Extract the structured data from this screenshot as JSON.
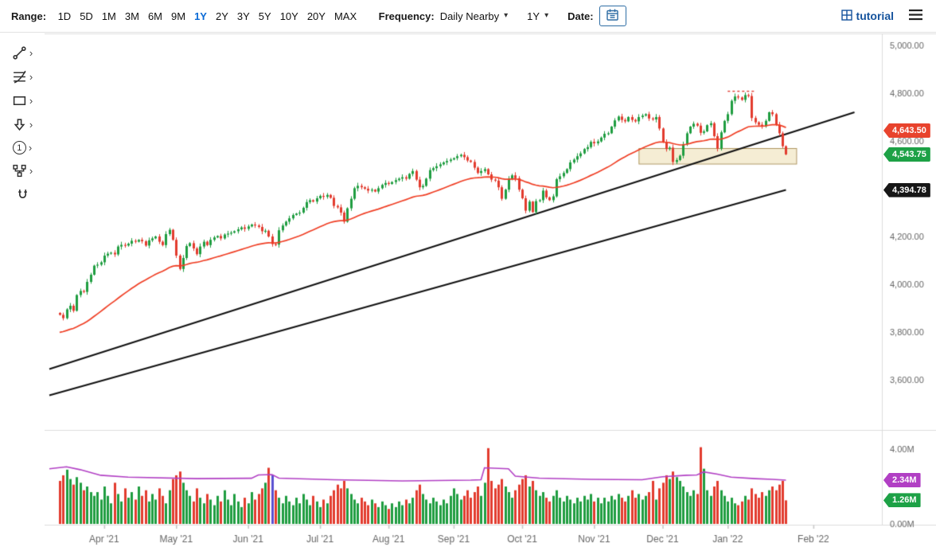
{
  "glyphs": {
    "caret": "▾",
    "chevron": "›"
  },
  "topbar": {
    "range": {
      "label": "Range:",
      "options": [
        "1D",
        "5D",
        "1M",
        "3M",
        "6M",
        "9M",
        "1Y",
        "2Y",
        "3Y",
        "5Y",
        "10Y",
        "20Y",
        "MAX"
      ],
      "active": "1Y"
    },
    "frequency": {
      "label": "Frequency:",
      "value": "Daily Nearby"
    },
    "aggregation": {
      "value": "1Y"
    },
    "date": {
      "label": "Date:"
    },
    "brand": {
      "name": "tutorial"
    }
  },
  "left_toolbar": {
    "chevron": "›",
    "number_label": "1",
    "items": [
      "trendline-tool",
      "fibonacci-tools",
      "shape-tools",
      "arrow-annotation-tool",
      "number-annotation-tool",
      "indicator-flow-tool",
      "magnet-mode"
    ]
  },
  "chart_data": {
    "type": "candlestick",
    "panes": [
      "price",
      "volume"
    ],
    "x_axis": {
      "domain": [
        -3,
        240
      ],
      "labels": [
        "Apr '21",
        "May '21",
        "Jun '21",
        "Jul '21",
        "Aug '21",
        "Sep '21",
        "Oct '21",
        "Nov '21",
        "Dec '21",
        "Jan '22",
        "Feb '22"
      ],
      "label_days": [
        13,
        34,
        55,
        76,
        96,
        115,
        135,
        156,
        176,
        195,
        220
      ]
    },
    "y_axis": {
      "labels": [
        "5,000.00",
        "4,800.00",
        "4,600.00",
        "4,400.00",
        "4,200.00",
        "4,000.00",
        "3,800.00",
        "3,600.00"
      ],
      "values": [
        5000,
        4800,
        4600,
        4400,
        4200,
        4000,
        3800,
        3600
      ],
      "range": [
        3500,
        5050
      ]
    },
    "volume_axis": {
      "labels": [
        "4.00M",
        "0.00M"
      ],
      "values": [
        4,
        0
      ],
      "range": [
        0,
        4.4
      ]
    },
    "candles": {
      "first_open": 3880,
      "colors": {
        "up": "#1f9d40",
        "down": "#e23b2e"
      },
      "closes": [
        3872,
        3858,
        3895,
        3910,
        3889,
        3955,
        3972,
        3968,
        4010,
        4040,
        4078,
        4082,
        4092,
        4120,
        4128,
        4132,
        4125,
        4158,
        4165,
        4162,
        4170,
        4182,
        4178,
        4186,
        4180,
        4162,
        4184,
        4192,
        4200,
        4178,
        4164,
        4210,
        4228,
        4186,
        4120,
        4064,
        4110,
        4160,
        4172,
        4150,
        4126,
        4158,
        4178,
        4164,
        4186,
        4196,
        4202,
        4192,
        4208,
        4212,
        4216,
        4222,
        4230,
        4238,
        4232,
        4242,
        4250,
        4246,
        4240,
        4222,
        4224,
        4200,
        4168,
        4166,
        4226,
        4246,
        4262,
        4276,
        4290,
        4296,
        4300,
        4320,
        4344,
        4352,
        4346,
        4360,
        4370,
        4366,
        4374,
        4362,
        4328,
        4322,
        4300,
        4262,
        4318,
        4358,
        4402,
        4412,
        4406,
        4400,
        4392,
        4396,
        4388,
        4402,
        4416,
        4424,
        4420,
        4428,
        4436,
        4442,
        4448,
        4442,
        4462,
        4474,
        4438,
        4406,
        4412,
        4442,
        4478,
        4486,
        4494,
        4502,
        4510,
        4516,
        4522,
        4528,
        4536,
        4542,
        4532,
        4518,
        4512,
        4488,
        4466,
        4474,
        4482,
        4460,
        4438,
        4434,
        4406,
        4358,
        4396,
        4442,
        4456,
        4444,
        4396,
        4360,
        4308,
        4346,
        4302,
        4348,
        4352,
        4392,
        4364,
        4352,
        4368,
        4440,
        4452,
        4466,
        4482,
        4510,
        4522,
        4536,
        4548,
        4566,
        4574,
        4596,
        4590,
        4598,
        4614,
        4630,
        4632,
        4660,
        4686,
        4702,
        4688,
        4682,
        4700,
        4688,
        4682,
        4700,
        4706,
        4712,
        4694,
        4690,
        4700,
        4652,
        4596,
        4566,
        4572,
        4512,
        4520,
        4538,
        4586,
        4632,
        4660,
        4672,
        4664,
        4634,
        4640,
        4666,
        4674,
        4620,
        4568,
        4636,
        4684,
        4712,
        4768,
        4786,
        4782,
        4772,
        4792,
        4788,
        4696,
        4678,
        4668,
        4662,
        4684,
        4720,
        4712,
        4668,
        4632,
        4578,
        4543.75
      ],
      "volumes": [
        2.3,
        2.6,
        2.9,
        2.4,
        2.1,
        2.5,
        2.2,
        1.8,
        2.0,
        1.7,
        1.5,
        1.7,
        1.3,
        2.0,
        1.5,
        1.1,
        2.2,
        1.6,
        1.2,
        1.9,
        1.4,
        1.7,
        1.3,
        2.0,
        1.5,
        1.8,
        1.2,
        1.6,
        1.3,
        1.9,
        1.5,
        1.1,
        1.8,
        2.4,
        2.6,
        2.8,
        2.2,
        1.8,
        1.5,
        1.2,
        1.9,
        1.4,
        1.1,
        1.6,
        1.3,
        1.0,
        1.5,
        1.2,
        1.8,
        1.3,
        1.0,
        1.6,
        1.2,
        0.9,
        1.4,
        1.1,
        1.7,
        1.3,
        1.6,
        1.9,
        2.2,
        3.0,
        2.6,
        1.8,
        1.4,
        1.1,
        1.5,
        1.2,
        1.0,
        1.4,
        1.1,
        1.6,
        1.3,
        1.0,
        1.5,
        1.2,
        0.9,
        1.3,
        1.1,
        1.5,
        1.8,
        2.1,
        1.9,
        2.3,
        1.9,
        1.6,
        1.3,
        1.1,
        1.4,
        1.2,
        1.0,
        1.3,
        1.1,
        0.9,
        1.2,
        1.0,
        0.8,
        1.1,
        0.9,
        1.2,
        1.0,
        1.3,
        1.1,
        1.4,
        1.8,
        2.1,
        1.6,
        1.3,
        1.1,
        1.4,
        1.2,
        1.0,
        1.3,
        1.1,
        1.5,
        1.9,
        1.6,
        1.3,
        1.5,
        1.8,
        1.4,
        1.7,
        2.0,
        1.5,
        2.2,
        4.05,
        2.3,
        1.9,
        2.1,
        2.4,
        2.0,
        1.7,
        1.4,
        1.8,
        2.1,
        2.4,
        2.6,
        2.0,
        2.3,
        1.8,
        1.5,
        1.7,
        1.4,
        1.2,
        1.5,
        1.8,
        1.4,
        1.2,
        1.5,
        1.3,
        1.1,
        1.4,
        1.2,
        1.5,
        1.3,
        1.6,
        1.2,
        1.4,
        1.1,
        1.4,
        1.2,
        1.5,
        1.3,
        1.6,
        1.4,
        1.2,
        1.5,
        1.8,
        1.4,
        1.6,
        1.3,
        1.5,
        1.7,
        2.3,
        1.3,
        1.9,
        2.2,
        2.6,
        2.4,
        2.8,
        2.5,
        2.3,
        2.0,
        1.7,
        1.5,
        1.8,
        1.6,
        4.1,
        2.95,
        1.8,
        1.5,
        2.0,
        2.3,
        1.8,
        1.5,
        1.2,
        1.4,
        1.1,
        1.0,
        1.2,
        1.5,
        1.3,
        1.9,
        1.6,
        1.4,
        1.7,
        1.5,
        1.8,
        2.0,
        1.8,
        2.1,
        2.3,
        1.26
      ],
      "volume_overrides": [
        {
          "index": 62,
          "color": "#5a50d0"
        }
      ]
    },
    "overlays": {
      "ma": {
        "kind": "ema",
        "period": 40,
        "seed": 3795,
        "color": "#ef3e24",
        "last_value_label": "4,643.50"
      },
      "trendlines": [
        {
          "from_day": -3,
          "from_price": 3645,
          "to_day": 232,
          "to_price": 4720,
          "color": "#111111",
          "width": 2
        },
        {
          "from_day": -3,
          "from_price": 3535,
          "to_day": 212,
          "to_price": 4394.78,
          "color": "#111111",
          "width": 2,
          "last_value_label": "4,394.78"
        }
      ],
      "box": {
        "from_day": 169,
        "to_day": 215,
        "top_price": 4570,
        "bottom_price": 4505,
        "fill": "rgba(233,214,160,0.45)",
        "border": "#ad945c"
      },
      "peak_marker": {
        "from_day": 195,
        "to_day": 203,
        "price": 4808,
        "color": "#e03c31",
        "dashed": true
      },
      "volume_ma": {
        "color": "#b13fc4",
        "last_value_label": "2.34M",
        "points": [
          [
            -3,
            2.95
          ],
          [
            2,
            3.05
          ],
          [
            6,
            2.9
          ],
          [
            12,
            2.6
          ],
          [
            20,
            2.5
          ],
          [
            40,
            2.42
          ],
          [
            56,
            2.44
          ],
          [
            58,
            2.62
          ],
          [
            62,
            2.64
          ],
          [
            64,
            2.45
          ],
          [
            80,
            2.36
          ],
          [
            100,
            2.3
          ],
          [
            120,
            2.34
          ],
          [
            123,
            2.36
          ],
          [
            124,
            3.0
          ],
          [
            131,
            2.95
          ],
          [
            133,
            2.55
          ],
          [
            140,
            2.45
          ],
          [
            155,
            2.38
          ],
          [
            170,
            2.36
          ],
          [
            176,
            2.52
          ],
          [
            183,
            2.6
          ],
          [
            186,
            2.62
          ],
          [
            188,
            2.78
          ],
          [
            192,
            2.66
          ],
          [
            196,
            2.5
          ],
          [
            203,
            2.42
          ],
          [
            208,
            2.38
          ],
          [
            212,
            2.34
          ]
        ]
      }
    },
    "badges": [
      {
        "name": "ma-value-badge",
        "text": "4,643.50",
        "color": "#e8432d",
        "pane": "price",
        "value": 4643.5
      },
      {
        "name": "last-price-badge",
        "text": "4,543.75",
        "color": "#1da146",
        "pane": "price",
        "value": 4543.75
      },
      {
        "name": "trendline-value-badge",
        "text": "4,394.78",
        "color": "#161616",
        "pane": "price",
        "value": 4394.78
      },
      {
        "name": "volume-ma-badge",
        "text": "2.34M",
        "color": "#b13fc4",
        "pane": "volume",
        "value": 2.34
      },
      {
        "name": "volume-value-badge",
        "text": "1.26M",
        "color": "#1da146",
        "pane": "volume",
        "value": 1.26
      }
    ]
  }
}
